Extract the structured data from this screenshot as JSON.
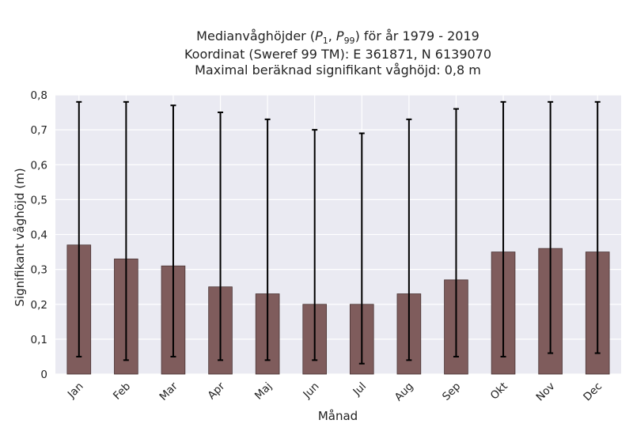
{
  "chart_data": {
    "type": "bar",
    "title_lines": [
      "Medianvåghöjder (P1, P99) för år 1979 - 2019",
      "Koordinat (Sweref 99 TM): E 361871, N 6139070",
      "Maximal beräknad signifikant våghöjd: 0,8 m"
    ],
    "xlabel": "Månad",
    "ylabel": "Signifikant våghöjd (m)",
    "categories": [
      "Jan",
      "Feb",
      "Mar",
      "Apr",
      "Maj",
      "Jun",
      "Jul",
      "Aug",
      "Sep",
      "Okt",
      "Nov",
      "Dec"
    ],
    "values": [
      0.37,
      0.33,
      0.31,
      0.25,
      0.23,
      0.2,
      0.2,
      0.23,
      0.27,
      0.35,
      0.36,
      0.35
    ],
    "error_low": [
      0.05,
      0.04,
      0.05,
      0.04,
      0.04,
      0.04,
      0.03,
      0.04,
      0.05,
      0.05,
      0.06,
      0.06
    ],
    "error_high": [
      0.78,
      0.78,
      0.77,
      0.75,
      0.73,
      0.7,
      0.69,
      0.73,
      0.76,
      0.78,
      0.78,
      0.78
    ],
    "ylim": [
      0,
      0.8
    ],
    "yticks": [
      0,
      0.1,
      0.2,
      0.3,
      0.4,
      0.5,
      0.6,
      0.7,
      0.8
    ],
    "ytick_labels": [
      "0",
      "0,1",
      "0,2",
      "0,3",
      "0,4",
      "0,5",
      "0,6",
      "0,7",
      "0,8"
    ],
    "grid": true,
    "colors": {
      "bar": "#7f5c5c",
      "bar_edge": "#4a3535",
      "error_bar": "#000000",
      "plot_background": "#eaeaf2",
      "grid": "#ffffff"
    }
  }
}
